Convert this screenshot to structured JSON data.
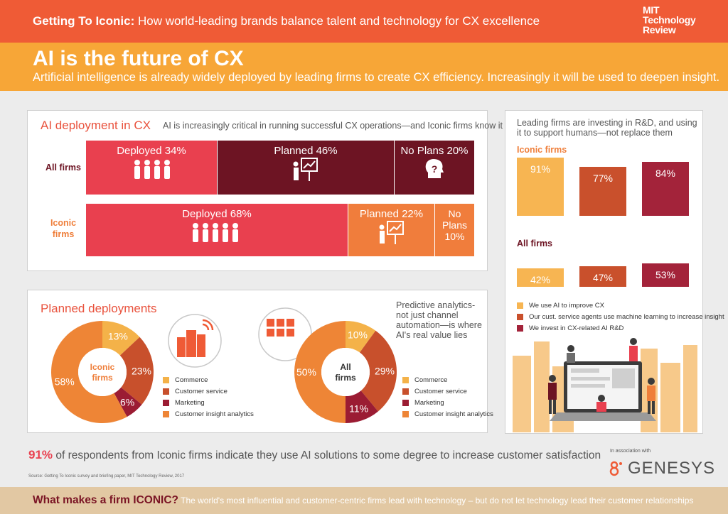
{
  "header": {
    "lead": "Getting To Iconic:",
    "rest": " How world-leading brands balance talent and technology for CX excellence",
    "logo": [
      "MIT",
      "Technology",
      "Review"
    ]
  },
  "headline": "AI is the future of CX",
  "subheadline": "Artificial intelligence is already widely deployed by leading firms to create CX efficiency. Increasingly it will be used to deepen insight.",
  "colors": {
    "deployed": "#e9404f",
    "planned_all": "#6d1423",
    "planned_iconic": "#f07d3c",
    "no_plans_all": "#6d1423",
    "no_plans_iconic": "#f07d3c",
    "commerce": "#f4b249",
    "customer_service": "#c8502c",
    "marketing": "#9b1c33",
    "insight": "#ee8536"
  },
  "deployment": {
    "title": "AI deployment in CX",
    "note": "AI is increasingly critical in running successful CX operations—and Iconic firms know it",
    "all_label": "All firms",
    "iconic_label": [
      "Iconic",
      "firms"
    ],
    "all": [
      {
        "label": "Deployed 34%",
        "value": 34
      },
      {
        "label": "Planned 46%",
        "value": 46
      },
      {
        "label": "No Plans 20%",
        "value": 20
      }
    ],
    "iconic": [
      {
        "label": "Deployed 68%",
        "value": 68
      },
      {
        "label": "Planned 22%",
        "value": 22
      },
      {
        "label": [
          "No",
          "Plans",
          "10%"
        ],
        "value": 10
      }
    ]
  },
  "planned": {
    "title": "Planned deployments",
    "note": [
      "Predictive analytics-",
      "not just channel",
      "automation—is where",
      "AI's real value lies"
    ],
    "legend": [
      "Commerce",
      "Customer service",
      "Marketing",
      "Customer insight analytics"
    ]
  },
  "chart_data": [
    {
      "type": "pie",
      "title": "Iconic firms",
      "categories": [
        "Commerce",
        "Customer service",
        "Marketing",
        "Customer insight analytics"
      ],
      "values": [
        13,
        23,
        6,
        58
      ],
      "labels": [
        "13%",
        "23%",
        "6%",
        "58%"
      ]
    },
    {
      "type": "pie",
      "title": "All firms",
      "categories": [
        "Commerce",
        "Customer service",
        "Marketing",
        "Customer insight analytics"
      ],
      "values": [
        10,
        29,
        11,
        50
      ],
      "labels": [
        "10%",
        "29%",
        "11%",
        "50%"
      ]
    },
    {
      "type": "bar",
      "note": "Leading firms are investing in R&D, and using it to support humans—not replace them",
      "groups": [
        "Iconic firms",
        "All firms"
      ],
      "series": [
        {
          "name": "We use AI to improve CX",
          "values": [
            91,
            42
          ]
        },
        {
          "name": "Our cust. service agents use machine learning to increase insight",
          "values": [
            77,
            47
          ]
        },
        {
          "name": "We invest in CX-related AI R&D",
          "values": [
            84,
            53
          ]
        }
      ],
      "labels": [
        [
          "91%",
          "77%",
          "84%"
        ],
        [
          "42%",
          "47%",
          "53%"
        ]
      ],
      "colors": [
        "#f7b552",
        "#c9502c",
        "#a3233a"
      ]
    }
  ],
  "stat": {
    "big": "91%",
    "text": " of respondents from Iconic firms indicate they use AI solutions to some degree to increase customer satisfaction"
  },
  "source": "Source: Getting To Iconic survey and briefing paper, MIT Technology Review, 2017",
  "association": "In association with",
  "sponsor": "GENESYS",
  "footer": {
    "q": "What makes a firm ICONIC?",
    "text": " The world's most influential and customer-centric firms lead with technology – but do not let technology lead their customer relationships"
  }
}
